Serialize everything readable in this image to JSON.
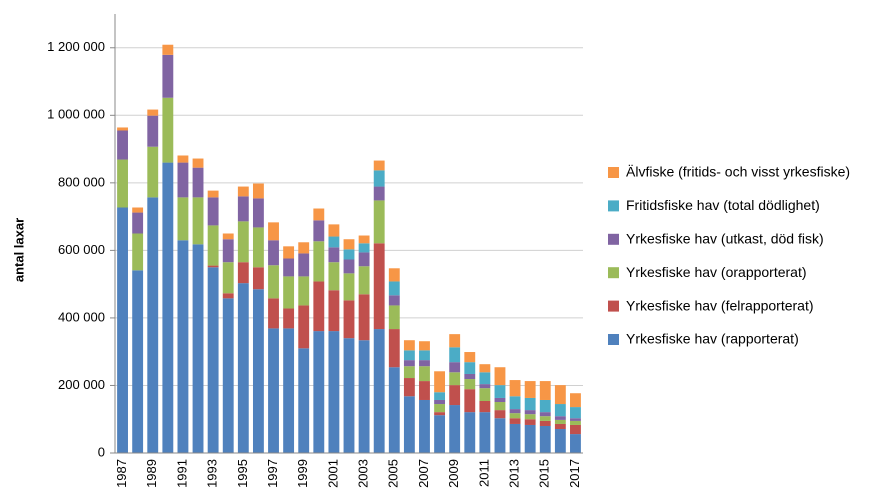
{
  "chart_data": {
    "type": "stacked_bar",
    "y_label": "antal laxar",
    "categories": [
      "1987",
      null,
      "1989",
      null,
      "1991",
      null,
      "1993",
      null,
      "1995",
      null,
      "1997",
      null,
      "1999",
      null,
      "2001",
      null,
      "2003",
      null,
      "2005",
      null,
      "2007",
      null,
      "2009",
      null,
      "2011",
      null,
      "2013",
      null,
      "2015",
      null,
      "2017"
    ],
    "series": [
      {
        "name": "Yrkesfiske hav (rapporterat)",
        "color": "#4f81bd",
        "values": [
          727000,
          541000,
          757000,
          860000,
          630000,
          618000,
          550000,
          458000,
          503000,
          485000,
          369000,
          369000,
          310000,
          361000,
          361000,
          340000,
          334000,
          367000,
          254000,
          168000,
          157000,
          112000,
          142000,
          121000,
          121000,
          103000,
          86000,
          83000,
          80000,
          71000,
          56000
        ]
      },
      {
        "name": "Yrkesfiske hav (felrapporterat)",
        "color": "#c0504d",
        "values": [
          0,
          0,
          0,
          0,
          0,
          0,
          5000,
          15000,
          62000,
          65000,
          89000,
          59000,
          127000,
          147000,
          121000,
          112000,
          136000,
          254000,
          113000,
          54000,
          56000,
          9000,
          59000,
          68000,
          33000,
          24000,
          17000,
          17000,
          15000,
          15000,
          27000
        ]
      },
      {
        "name": "Yrkesfiske hav (orapporterat)",
        "color": "#9bbb59",
        "values": [
          142000,
          109000,
          150000,
          192000,
          127000,
          139000,
          119000,
          92000,
          121000,
          118000,
          98000,
          95000,
          86000,
          119000,
          83000,
          80000,
          83000,
          127000,
          70000,
          35000,
          44000,
          24000,
          38000,
          30000,
          38000,
          24000,
          15000,
          15000,
          14000,
          12000,
          12000
        ]
      },
      {
        "name": "Yrkesfiske hav (utkast, död fisk)",
        "color": "#8064a2",
        "values": [
          86000,
          62000,
          92000,
          127000,
          103000,
          88000,
          83000,
          68000,
          74000,
          86000,
          74000,
          53000,
          68000,
          62000,
          44000,
          41000,
          41000,
          41000,
          30000,
          18000,
          18000,
          12000,
          30000,
          15000,
          12000,
          12000,
          12000,
          12000,
          12000,
          11000,
          8000
        ]
      },
      {
        "name": "Fritidsfiske hav (total dödlighet)",
        "color": "#4bacc6",
        "values": [
          0,
          0,
          0,
          0,
          0,
          0,
          0,
          0,
          0,
          0,
          0,
          0,
          0,
          0,
          32000,
          30000,
          27000,
          48000,
          41000,
          29000,
          29000,
          23000,
          44000,
          35000,
          35000,
          38000,
          38000,
          36000,
          36000,
          36000,
          33000
        ]
      },
      {
        "name": "Älvfiske (fritids- och visst yrkesfiske)",
        "color": "#f79646",
        "values": [
          9000,
          15000,
          18000,
          30000,
          21000,
          27000,
          20000,
          17000,
          29000,
          44000,
          53000,
          36000,
          33000,
          35000,
          36000,
          30000,
          23000,
          29000,
          39000,
          30000,
          27000,
          62000,
          39000,
          30000,
          24000,
          53000,
          48000,
          50000,
          56000,
          56000,
          41000
        ]
      }
    ],
    "ylim": [
      0,
      1300000
    ],
    "yticks": [
      0,
      {
        "value": 200000,
        "label": "200 000"
      },
      {
        "value": 400000,
        "label": "400 000"
      },
      {
        "value": 600000,
        "label": "600 000"
      },
      {
        "value": 800000,
        "label": "800 000"
      },
      {
        "value": 1000000,
        "label": "1 000 000"
      },
      {
        "value": 1200000,
        "label": "1 200 000"
      }
    ],
    "grid": true,
    "legend": "right"
  }
}
